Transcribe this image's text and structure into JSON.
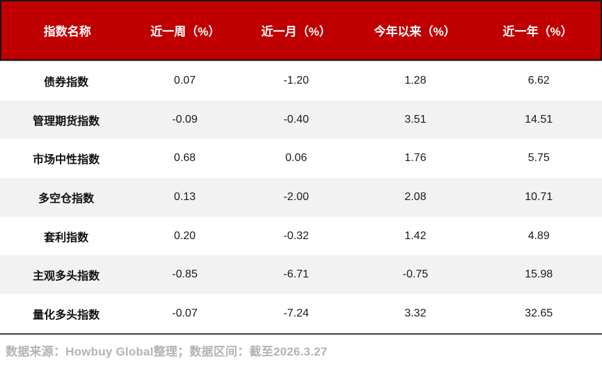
{
  "chart_data": {
    "type": "table",
    "title": "",
    "columns": [
      "指数名称",
      "近一周（%）",
      "近一月（%）",
      "今年以来（%）",
      "近一年（%）"
    ],
    "rows": [
      [
        "债券指数",
        "0.07",
        "-1.20",
        "1.28",
        "6.62"
      ],
      [
        "管理期货指数",
        "-0.09",
        "-0.40",
        "3.51",
        "14.51"
      ],
      [
        "市场中性指数",
        "0.68",
        "0.06",
        "1.76",
        "5.75"
      ],
      [
        "多空仓指数",
        "0.13",
        "-2.00",
        "2.08",
        "10.71"
      ],
      [
        "套利指数",
        "0.20",
        "-0.32",
        "1.42",
        "4.89"
      ],
      [
        "主观多头指数",
        "-0.85",
        "-6.71",
        "-0.75",
        "15.98"
      ],
      [
        "量化多头指数",
        "-0.07",
        "-7.24",
        "3.32",
        "32.65"
      ]
    ],
    "footer": "数据来源：Howbuy Global整理；数据区间：截至2026.3.27",
    "layout_hints": {
      "striped_rows": true,
      "header_position": "top",
      "grid": "none"
    }
  },
  "colors": {
    "header_bg": "#C00000",
    "header_border": "#161616",
    "header_text": "#FFFFFF",
    "row_alt_bg": "#F2F2F2",
    "body_text": "#1A1A1A",
    "bottom_rule": "#3D3D3D",
    "footer_text": "#B3B3B3"
  }
}
